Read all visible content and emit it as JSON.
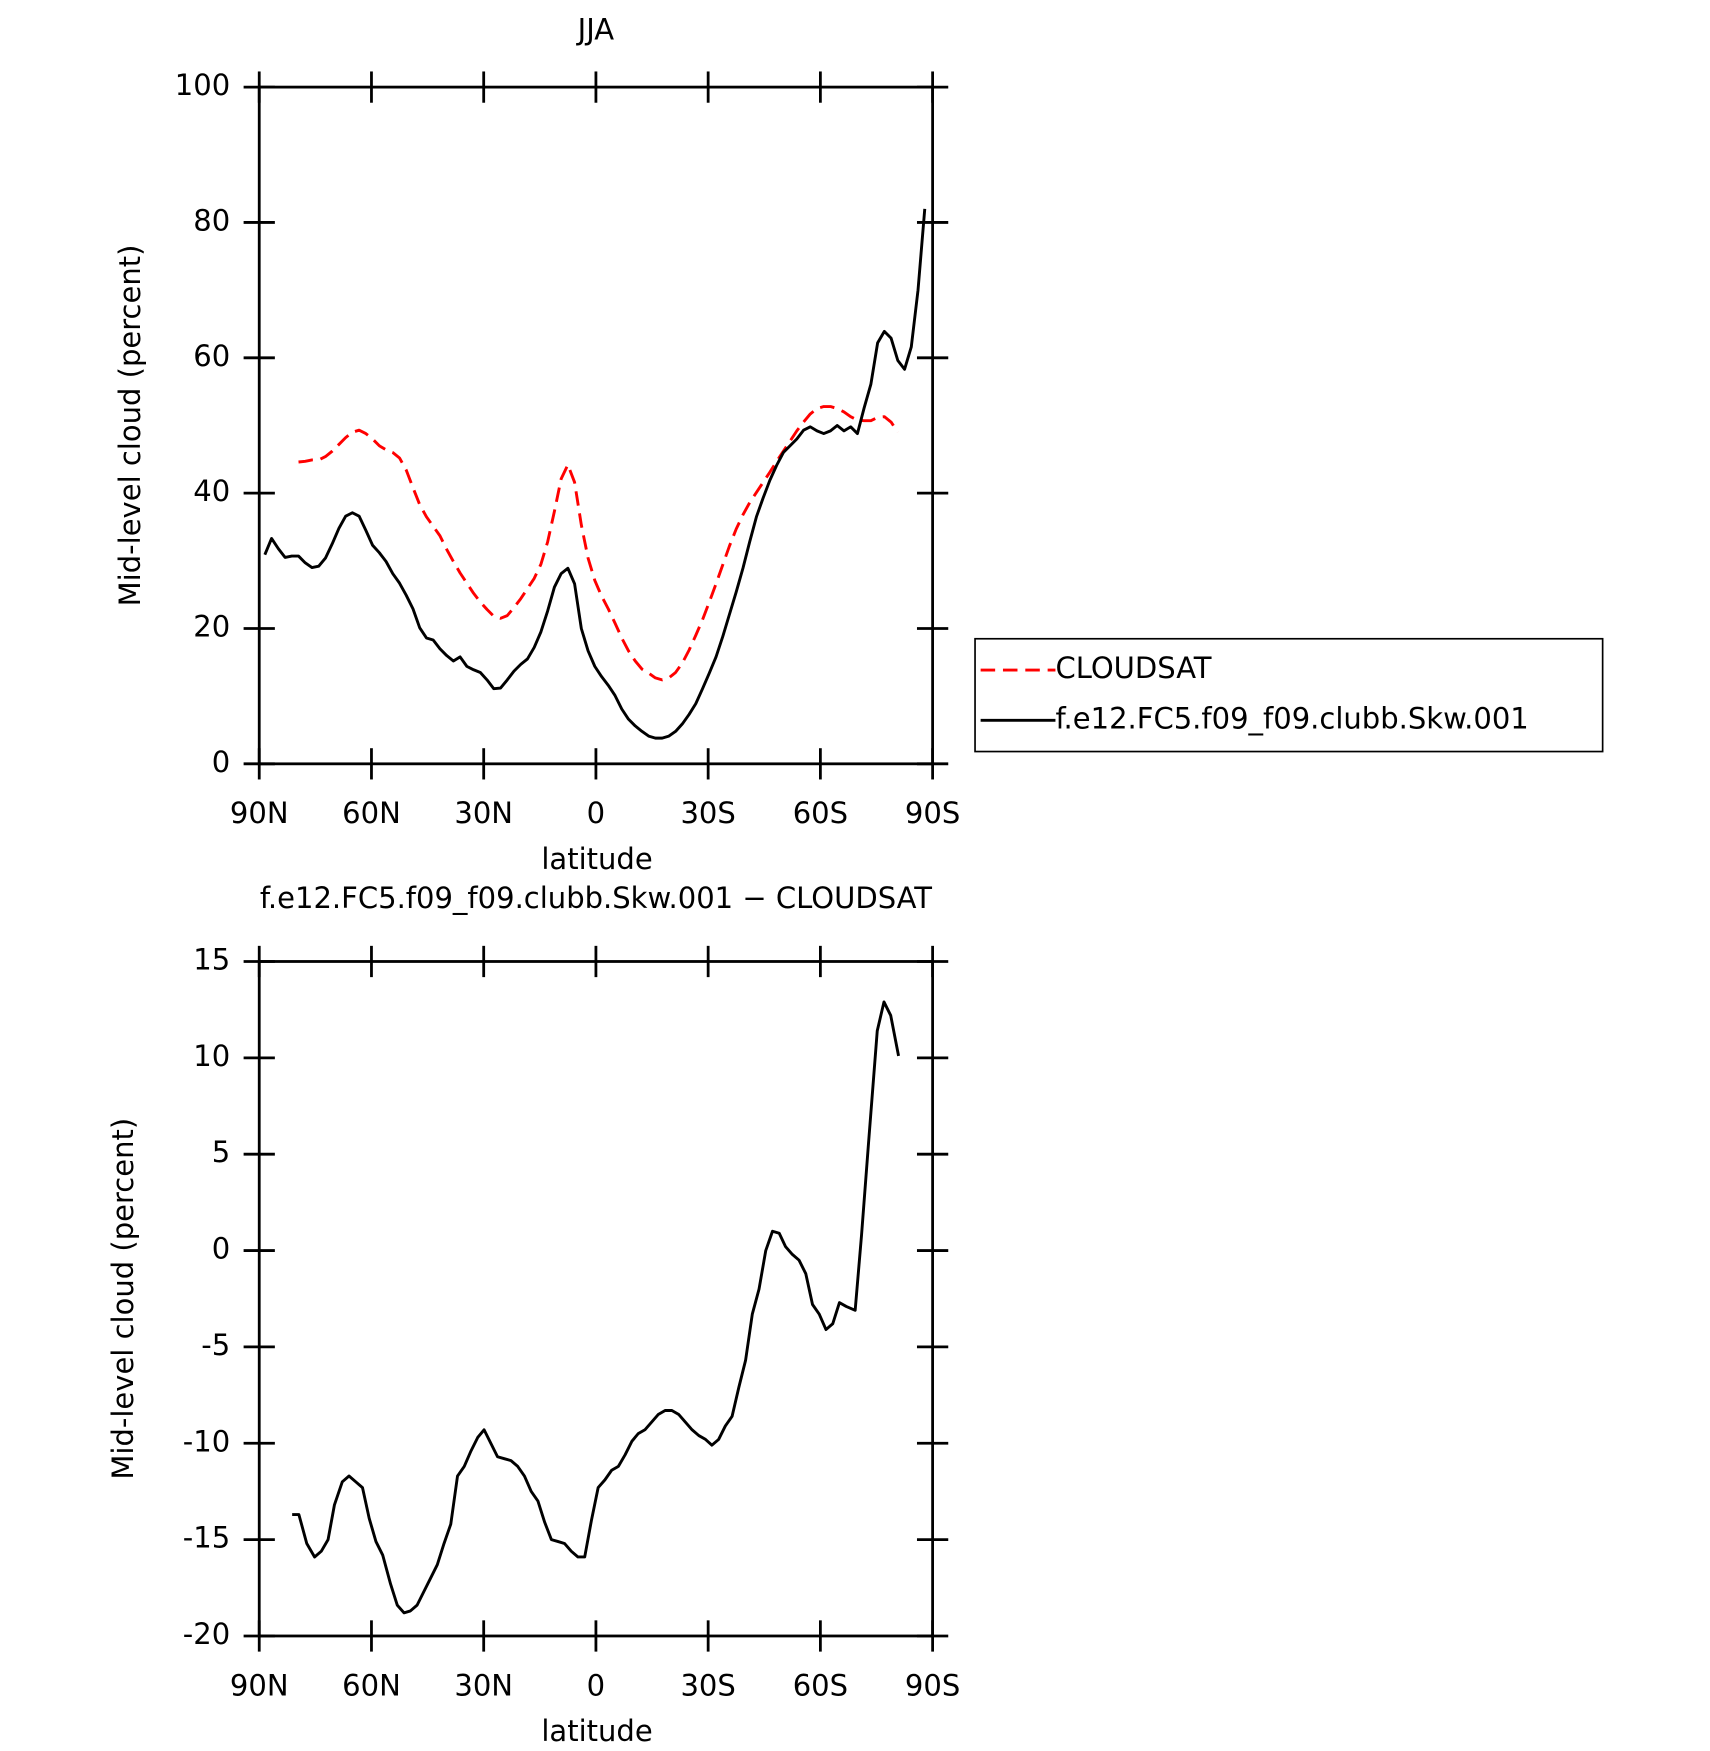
{
  "chart_data": [
    {
      "type": "line",
      "title": "JJA",
      "x_label": "latitude",
      "y_label": "Mid-level cloud (percent)",
      "xlim": [
        90,
        -90
      ],
      "xticks": [
        {
          "value": 90,
          "label": "90N"
        },
        {
          "value": 60,
          "label": "60N"
        },
        {
          "value": 30,
          "label": "30N"
        },
        0,
        {
          "value": -30,
          "label": "30S"
        },
        {
          "value": -60,
          "label": "60S"
        },
        {
          "value": -90,
          "label": "90S"
        }
      ],
      "ylim": [
        0,
        100
      ],
      "yticks": [
        0,
        20,
        40,
        60,
        80,
        100
      ],
      "legend": "right",
      "x": [
        88.5,
        86.7,
        84.9,
        83.1,
        81.3,
        79.5,
        77.7,
        75.9,
        74.1,
        72.3,
        70.5,
        68.7,
        66.9,
        65.1,
        63.3,
        61.5,
        59.7,
        57.9,
        56.1,
        54.3,
        52.5,
        50.7,
        48.9,
        47.1,
        45.3,
        43.5,
        41.7,
        39.9,
        38.1,
        36.3,
        34.5,
        32.7,
        30.9,
        29.1,
        27.3,
        25.5,
        23.7,
        21.9,
        20.1,
        18.3,
        16.5,
        14.7,
        12.9,
        11.1,
        9.3,
        7.5,
        5.7,
        3.9,
        2.1,
        0.3,
        -1.5,
        -3.3,
        -5.1,
        -6.9,
        -8.7,
        -10.5,
        -12.3,
        -14.1,
        -15.9,
        -17.7,
        -19.5,
        -21.3,
        -23.1,
        -24.9,
        -26.7,
        -28.5,
        -30.3,
        -32.1,
        -33.9,
        -35.7,
        -37.5,
        -39.3,
        -41.1,
        -42.9,
        -44.7,
        -46.5,
        -48.3,
        -50.1,
        -51.9,
        -53.7,
        -55.5,
        -57.3,
        -59.1,
        -60.9,
        -62.7,
        -64.5,
        -66.3,
        -68.1,
        -69.9,
        -71.7,
        -73.5,
        -75.3,
        -77.1,
        -78.9,
        -80.7,
        -82.5,
        -84.3,
        -86.1,
        -87.9
      ],
      "series": [
        {
          "name": "CLOUDSAT",
          "color": "#ff0000",
          "dashed": true,
          "values": [
            null,
            null,
            null,
            null,
            null,
            44.6,
            44.7,
            44.9,
            44.9,
            45.4,
            46.2,
            47.2,
            48.2,
            49.0,
            49.3,
            48.8,
            48.0,
            47.0,
            46.4,
            46.0,
            45.2,
            43.4,
            40.8,
            38.3,
            36.5,
            35.1,
            33.7,
            31.7,
            29.9,
            28.2,
            26.7,
            25.2,
            23.9,
            22.8,
            21.8,
            21.5,
            21.9,
            23.1,
            24.4,
            25.9,
            27.4,
            29.5,
            32.8,
            37.3,
            42.1,
            44.2,
            41.6,
            35.3,
            30.4,
            27.1,
            24.8,
            22.9,
            20.8,
            18.6,
            16.7,
            15.2,
            14.0,
            13.4,
            12.7,
            12.4,
            12.7,
            13.5,
            14.9,
            16.8,
            19.0,
            21.3,
            23.9,
            26.6,
            29.4,
            32.2,
            34.7,
            36.8,
            38.6,
            40.1,
            41.6,
            43.1,
            44.7,
            46.2,
            47.7,
            49.2,
            50.5,
            51.7,
            52.5,
            52.8,
            52.8,
            52.5,
            52.0,
            51.3,
            50.8,
            50.7,
            50.7,
            51.2,
            51.3,
            50.5,
            49.0,
            null,
            null,
            null,
            null
          ]
        },
        {
          "name": "f.e12.FC5.f09_f09.clubb.Skw.001",
          "color": "#000000",
          "dashed": false,
          "values": [
            30.9,
            33.3,
            31.8,
            30.5,
            30.7,
            30.7,
            29.7,
            29.0,
            29.2,
            30.4,
            32.5,
            34.8,
            36.6,
            37.1,
            36.6,
            34.5,
            32.3,
            31.2,
            29.9,
            28.1,
            26.7,
            24.9,
            22.9,
            20.1,
            18.6,
            18.3,
            17.0,
            16.0,
            15.2,
            15.8,
            14.4,
            13.9,
            13.5,
            12.4,
            11.1,
            11.2,
            12.4,
            13.7,
            14.7,
            15.5,
            17.2,
            19.5,
            22.6,
            26.1,
            28.1,
            28.9,
            26.6,
            20.0,
            16.7,
            14.4,
            12.9,
            11.6,
            10.1,
            8.1,
            6.6,
            5.6,
            4.8,
            4.1,
            3.8,
            3.8,
            4.1,
            4.8,
            5.9,
            7.3,
            8.9,
            11.1,
            13.4,
            15.8,
            18.8,
            22.1,
            25.4,
            28.9,
            32.8,
            36.5,
            39.3,
            41.9,
            44.1,
            46.0,
            47.0,
            48.0,
            49.3,
            49.8,
            49.2,
            48.8,
            49.2,
            50.0,
            49.2,
            49.8,
            48.8,
            52.6,
            56.1,
            62.2,
            63.9,
            62.9,
            59.6,
            58.3,
            61.6,
            70.0,
            82.0
          ]
        }
      ]
    },
    {
      "type": "line",
      "title": "f.e12.FC5.f09_f09.clubb.Skw.001 − CLOUDSAT",
      "x_label": "latitude",
      "y_label": "Mid-level cloud (percent)",
      "xlim": [
        90,
        -90
      ],
      "xticks": [
        {
          "value": 90,
          "label": "90N"
        },
        {
          "value": 60,
          "label": "60N"
        },
        {
          "value": 30,
          "label": "30N"
        },
        0,
        {
          "value": -30,
          "label": "30S"
        },
        {
          "value": -60,
          "label": "60S"
        },
        {
          "value": -90,
          "label": "90S"
        }
      ],
      "ylim": [
        -20,
        15
      ],
      "yticks": [
        -20,
        -15,
        -10,
        -5,
        0,
        5,
        10,
        15
      ],
      "color": "#000000",
      "x": [
        81.2,
        79.4,
        77.3,
        75.2,
        73.4,
        71.6,
        69.9,
        67.8,
        66.0,
        64.2,
        62.4,
        60.6,
        58.8,
        57.0,
        54.9,
        53.1,
        51.3,
        49.6,
        47.8,
        46.0,
        44.2,
        42.4,
        40.6,
        38.8,
        37.0,
        35.2,
        33.4,
        31.6,
        29.9,
        28.1,
        26.3,
        24.5,
        22.7,
        20.9,
        19.1,
        17.3,
        15.5,
        13.7,
        11.9,
        10.1,
        8.4,
        6.6,
        4.8,
        3.0,
        1.2,
        -0.6,
        -2.4,
        -4.2,
        -6.0,
        -7.8,
        -9.6,
        -11.3,
        -13.1,
        -14.9,
        -16.7,
        -18.5,
        -20.3,
        -22.1,
        -23.9,
        -25.7,
        -27.5,
        -29.3,
        -31.0,
        -32.8,
        -34.6,
        -36.4,
        -38.2,
        -40.0,
        -41.8,
        -43.6,
        -45.4,
        -47.2,
        -49.0,
        -50.7,
        -52.5,
        -54.3,
        -56.1,
        -57.9,
        -59.7,
        -61.5,
        -63.3,
        -65.1,
        -66.9,
        -69.3,
        -71.0,
        -72.8,
        -75.2,
        -77.0,
        -78.8,
        -80.9
      ],
      "values": [
        -13.7,
        -13.7,
        -15.2,
        -15.9,
        -15.6,
        -15.0,
        -13.2,
        -12.0,
        -11.7,
        -12.0,
        -12.3,
        -13.9,
        -15.1,
        -15.8,
        -17.3,
        -18.4,
        -18.8,
        -18.7,
        -18.4,
        -17.7,
        -17.0,
        -16.3,
        -15.2,
        -14.2,
        -11.7,
        -11.2,
        -10.4,
        -9.7,
        -9.3,
        -10.0,
        -10.7,
        -10.8,
        -10.9,
        -11.2,
        -11.7,
        -12.5,
        -13.0,
        -14.1,
        -15.0,
        -15.1,
        -15.2,
        -15.6,
        -15.9,
        -15.9,
        -14.0,
        -12.3,
        -11.9,
        -11.4,
        -11.2,
        -10.6,
        -9.9,
        -9.5,
        -9.3,
        -8.9,
        -8.5,
        -8.3,
        -8.3,
        -8.5,
        -8.9,
        -9.3,
        -9.6,
        -9.8,
        -10.1,
        -9.8,
        -9.1,
        -8.6,
        -7.1,
        -5.7,
        -3.3,
        -2.0,
        0.0,
        1.0,
        0.9,
        0.2,
        -0.2,
        -0.5,
        -1.2,
        -2.8,
        -3.3,
        -4.1,
        -3.8,
        -2.7,
        -2.9,
        -3.1,
        0.8,
        5.4,
        11.4,
        12.9,
        12.2,
        10.1
      ]
    }
  ]
}
